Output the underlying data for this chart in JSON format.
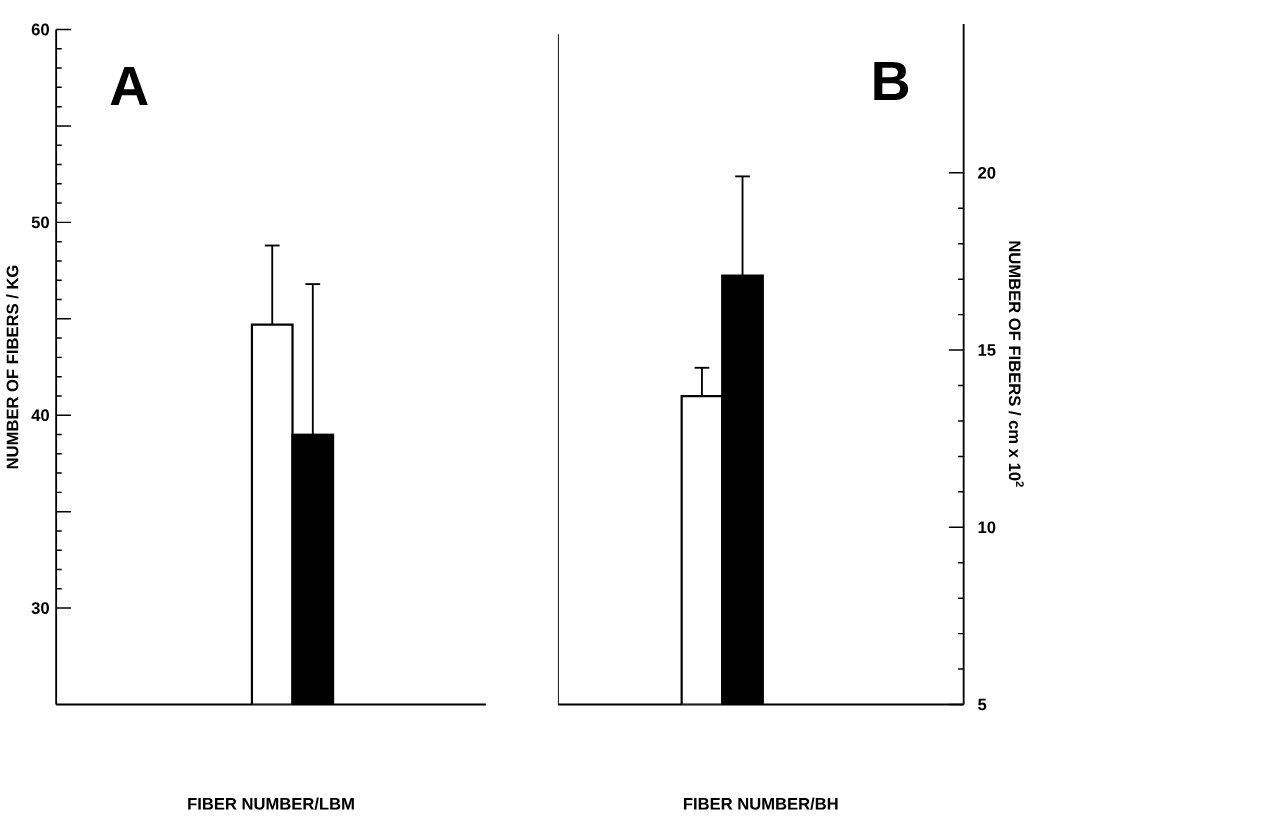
{
  "chart_data": [
    {
      "type": "bar",
      "title": "A",
      "categories": [
        null
      ],
      "xlabel": "FIBER NUMBER/LBM",
      "ylabel": "NUMBER OF FIBERS / KG",
      "ylim": [
        25,
        60
      ],
      "yticks": [
        30,
        {
          "value": 35,
          "label": null
        },
        40,
        {
          "value": 45,
          "label": null
        },
        50,
        {
          "value": 55,
          "label": null
        },
        60
      ],
      "series": [
        {
          "color": "#ffffff",
          "values": [
            44.7
          ],
          "errors": [
            [
              44.7,
              48.8
            ]
          ]
        },
        {
          "color": "#000000",
          "values": [
            39.0
          ],
          "errors": [
            [
              39.0,
              46.8
            ]
          ]
        }
      ]
    },
    {
      "type": "bar",
      "title": "B",
      "categories": [
        null
      ],
      "xlabel": "FIBER NUMBER/BH",
      "ylabel": "NUMBER OF FIBERS / cm x 10$^{2}$",
      "ylim": [
        5,
        24.2
      ],
      "yticks": [
        5,
        10,
        15,
        20
      ],
      "series": [
        {
          "color": "#ffffff",
          "values": [
            13.7
          ],
          "errors": [
            [
              13.7,
              14.5
            ]
          ]
        },
        {
          "color": "#000000",
          "values": [
            17.1
          ],
          "errors": [
            [
              17.1,
              19.9
            ]
          ]
        }
      ]
    }
  ]
}
